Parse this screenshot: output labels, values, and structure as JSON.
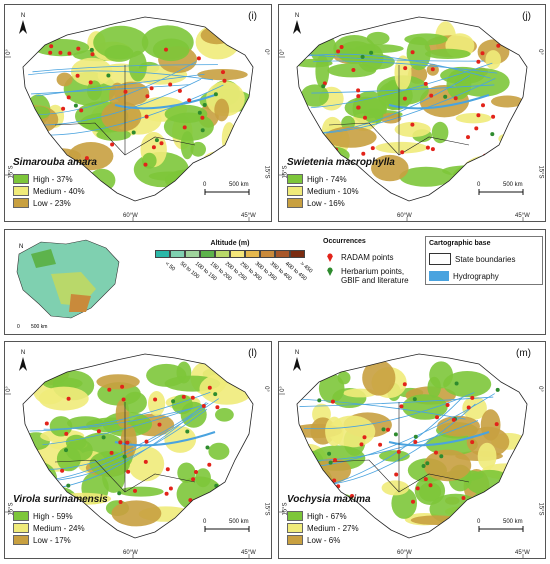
{
  "panels": [
    {
      "label": "(i)",
      "species": "Simarouba amara",
      "legend": [
        "High - 37%",
        "Medium - 40%",
        "Low - 23%"
      ]
    },
    {
      "label": "(j)",
      "species": "Swietenia macrophylla",
      "legend": [
        "High - 74%",
        "Medium - 10%",
        "Low - 16%"
      ]
    },
    {
      "label": "(l)",
      "species": "Virola surinamensis",
      "legend": [
        "High - 59%",
        "Medium - 24%",
        "Low - 17%"
      ]
    },
    {
      "label": "(m)",
      "species": "Vochysia maxima",
      "legend": [
        "High - 67%",
        "Medium - 27%",
        "Low - 6%"
      ]
    }
  ],
  "ticks": {
    "lat0": "0°",
    "lat15": "15°S",
    "lon60": "60°W",
    "lon45": "45°W",
    "north": "N",
    "scale_0": "0",
    "scale_500": "500 km"
  },
  "colors": {
    "high": "#7dc63a",
    "medium": "#f0eb7a",
    "low": "#c8a040",
    "water": "#4aa3df",
    "points": "#e2231a",
    "herb": "#2e8b2e"
  },
  "legend": {
    "altitude_title": "Altitude (m)",
    "altitude_classes": [
      "< 50",
      "50 to 100",
      "100 to 150",
      "150 to 200",
      "200 to 250",
      "250 to 300",
      "300 to 350",
      "350 to 400",
      "400 to 450",
      "> 450"
    ],
    "altitude_colors": [
      "#2bb8a8",
      "#7fd0b0",
      "#9fd39c",
      "#5db34c",
      "#b9d86a",
      "#f3e57a",
      "#e5b84f",
      "#c98a3b",
      "#a8572a",
      "#7a2b10"
    ],
    "inset_scale_0": "0",
    "inset_scale_500": "500 km",
    "occurrences_title": "Occurrences",
    "radam": "RADAM points",
    "herbarium": "Herbarium points, GBIF and literature",
    "carto_title": "Cartographic base",
    "state_boundaries": "State boundaries",
    "hydrography": "Hydrography"
  }
}
